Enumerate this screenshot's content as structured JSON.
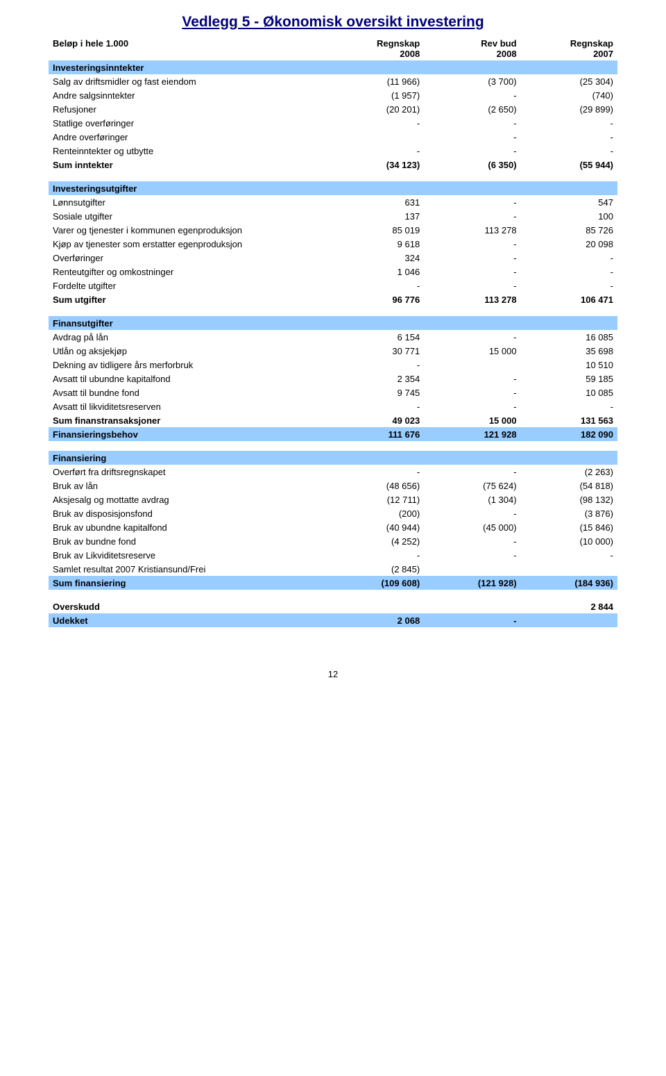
{
  "title": "Vedlegg 5 - Økonomisk oversikt investering",
  "header": {
    "label_line1": "",
    "label_line2": "Beløp i hele 1.000",
    "col1_line1": "Regnskap",
    "col1_line2": "2008",
    "col2_line1": "Rev bud",
    "col2_line2": "2008",
    "col3_line1": "Regnskap",
    "col3_line2": "2007"
  },
  "colors": {
    "title_color": "#000080",
    "section_bg": "#99ccff",
    "text": "#000000",
    "page_bg": "#ffffff"
  },
  "fonts": {
    "family": "Verdana",
    "body_size_pt": 10,
    "title_size_pt": 16
  },
  "sections": [
    {
      "title": "Investeringsinntekter",
      "rows": [
        {
          "label": "Salg av driftsmidler og fast eiendom",
          "c1": "(11 966)",
          "c2": "(3 700)",
          "c3": "(25 304)"
        },
        {
          "label": "Andre salgsinntekter",
          "c1": "(1 957)",
          "c2": "-",
          "c3": "(740)"
        },
        {
          "label": "Refusjoner",
          "c1": "(20 201)",
          "c2": "(2 650)",
          "c3": "(29 899)"
        },
        {
          "label": "Statlige overføringer",
          "c1": "-",
          "c2": "-",
          "c3": "-"
        },
        {
          "label": "Andre overføringer",
          "c1": "",
          "c2": "-",
          "c3": "-"
        },
        {
          "label": "Renteinntekter og utbytte",
          "c1": "-",
          "c2": "-",
          "c3": "-"
        }
      ],
      "total": {
        "label": "Sum inntekter",
        "c1": "(34 123)",
        "c2": "(6 350)",
        "c3": "(55 944)"
      }
    },
    {
      "title": "Investeringsutgifter",
      "rows": [
        {
          "label": "Lønnsutgifter",
          "c1": "631",
          "c2": "-",
          "c3": "547"
        },
        {
          "label": "Sosiale utgifter",
          "c1": "137",
          "c2": "-",
          "c3": "100"
        },
        {
          "label": "Varer og tjenester i kommunen egenproduksjon",
          "c1": "85 019",
          "c2": "113 278",
          "c3": "85 726"
        },
        {
          "label": "Kjøp av tjenester som erstatter egenproduksjon",
          "c1": "9 618",
          "c2": "-",
          "c3": "20 098"
        },
        {
          "label": "Overføringer",
          "c1": "324",
          "c2": "-",
          "c3": "-"
        },
        {
          "label": "Renteutgifter og omkostninger",
          "c1": "1 046",
          "c2": "-",
          "c3": "-"
        },
        {
          "label": "Fordelte utgifter",
          "c1": "-",
          "c2": "-",
          "c3": "-"
        }
      ],
      "total": {
        "label": "Sum utgifter",
        "c1": "96 776",
        "c2": "113 278",
        "c3": "106 471"
      }
    },
    {
      "title": "Finansutgifter",
      "rows": [
        {
          "label": "Avdrag på lån",
          "c1": "6 154",
          "c2": "-",
          "c3": "16 085"
        },
        {
          "label": "Utlån og aksjekjøp",
          "c1": "30 771",
          "c2": "15 000",
          "c3": "35 698"
        },
        {
          "label": "Dekning av tidligere års merforbruk",
          "c1": "-",
          "c2": "",
          "c3": "10 510"
        },
        {
          "label": "Avsatt til ubundne kapitalfond",
          "c1": "2 354",
          "c2": "-",
          "c3": "59 185"
        },
        {
          "label": "Avsatt til bundne fond",
          "c1": "9 745",
          "c2": "-",
          "c3": "10 085"
        },
        {
          "label": "Avsatt til likviditetsreserven",
          "c1": "-",
          "c2": "-",
          "c3": "-"
        }
      ],
      "total": {
        "label": "Sum finanstransaksjoner",
        "c1": "49 023",
        "c2": "15 000",
        "c3": "131 563"
      },
      "extra_bold_full": {
        "label": "Finansieringsbehov",
        "c1": "111 676",
        "c2": "121 928",
        "c3": "182 090"
      }
    },
    {
      "title": "Finansiering",
      "rows": [
        {
          "label": "Overført fra driftsregnskapet",
          "c1": "-",
          "c2": "-",
          "c3": "(2 263)"
        },
        {
          "label": "Bruk av lån",
          "c1": "(48 656)",
          "c2": "(75 624)",
          "c3": "(54 818)"
        },
        {
          "label": "Aksjesalg og mottatte avdrag",
          "c1": "(12 711)",
          "c2": "(1 304)",
          "c3": "(98 132)"
        },
        {
          "label": "Bruk av disposisjonsfond",
          "c1": "(200)",
          "c2": "-",
          "c3": "(3 876)"
        },
        {
          "label": "Bruk av ubundne kapitalfond",
          "c1": "(40 944)",
          "c2": "(45 000)",
          "c3": "(15 846)"
        },
        {
          "label": "Bruk av bundne fond",
          "c1": "(4 252)",
          "c2": "-",
          "c3": "(10 000)"
        },
        {
          "label": "Bruk av Likviditetsreserve",
          "c1": "-",
          "c2": "-",
          "c3": "-"
        },
        {
          "label": "Samlet resultat 2007 Kristiansund/Frei",
          "c1": "(2 845)",
          "c2": "",
          "c3": ""
        }
      ],
      "total_full": {
        "label": "Sum finansiering",
        "c1": "(109 608)",
        "c2": "(121 928)",
        "c3": "(184 936)"
      }
    }
  ],
  "footer_rows": [
    {
      "label": "Overskudd",
      "c1": "",
      "c2": "",
      "c3": "2 844",
      "bold": true
    },
    {
      "label": "Udekket",
      "c1": "2 068",
      "c2": "-",
      "c3": "",
      "bold": true,
      "full": true
    }
  ],
  "page_number": "12"
}
